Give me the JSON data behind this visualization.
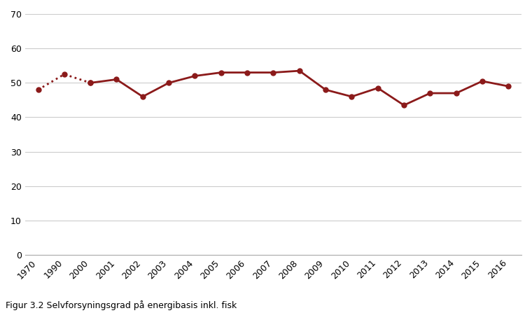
{
  "caption": "Figur 3.2 Selvforsyningsgrad på energibasis inkl. fisk",
  "xtick_labels": [
    "1970",
    "1990",
    "2000",
    "2001",
    "2002",
    "2003",
    "2004",
    "2005",
    "2006",
    "2007",
    "2008",
    "2009",
    "2010",
    "2011",
    "2012",
    "2013",
    "2014",
    "2015",
    "2016"
  ],
  "all_values": [
    48.0,
    52.5,
    50.0,
    51.0,
    46.0,
    50.0,
    52.0,
    53.0,
    53.0,
    53.0,
    53.5,
    48.0,
    46.0,
    48.5,
    43.5,
    47.0,
    47.0,
    50.5,
    49.0
  ],
  "dotted_indices": [
    0,
    1,
    2
  ],
  "solid_indices": [
    2,
    3,
    4,
    5,
    6,
    7,
    8,
    9,
    10,
    11,
    12,
    13,
    14,
    15,
    16,
    17,
    18
  ],
  "line_color": "#8B1A1A",
  "ylim": [
    0,
    70
  ],
  "yticks": [
    0,
    10,
    20,
    30,
    40,
    50,
    60,
    70
  ],
  "background_color": "#ffffff",
  "grid_color": "#cccccc",
  "caption_fontsize": 9,
  "tick_fontsize": 9
}
